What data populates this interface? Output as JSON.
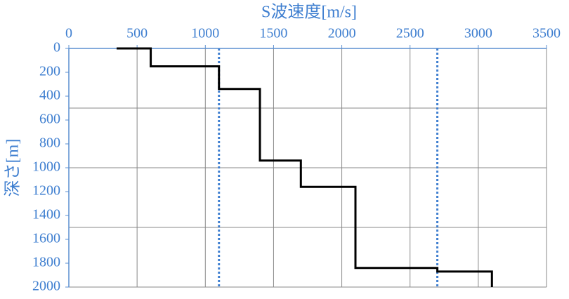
{
  "chart_data": {
    "type": "line",
    "x_label": "S波速度[m/s]",
    "y_label": "深さ[m]",
    "xlim": [
      0,
      3500
    ],
    "xticks": [
      0,
      500,
      1000,
      1500,
      2000,
      2500,
      3000,
      3500
    ],
    "ylim": [
      0,
      2000
    ],
    "yticks": [
      0,
      200,
      400,
      600,
      800,
      1000,
      1200,
      1400,
      1600,
      1800,
      2000
    ],
    "y_inverted": true,
    "ygrid": [
      500,
      1000,
      1500,
      2000
    ],
    "grid": true,
    "series": [
      {
        "color": "#000000",
        "x": [
          350,
          600,
          600,
          1100,
          1100,
          1400,
          1400,
          1700,
          1700,
          2100,
          2100,
          2700,
          2700,
          3100,
          3100
        ],
        "values": [
          0,
          0,
          150,
          150,
          340,
          340,
          940,
          940,
          1160,
          1160,
          1840,
          1840,
          1870,
          1870,
          2000
        ]
      }
    ],
    "reference_lines": {
      "color": "#3f7fd0",
      "x": [
        1100,
        2700
      ]
    }
  }
}
